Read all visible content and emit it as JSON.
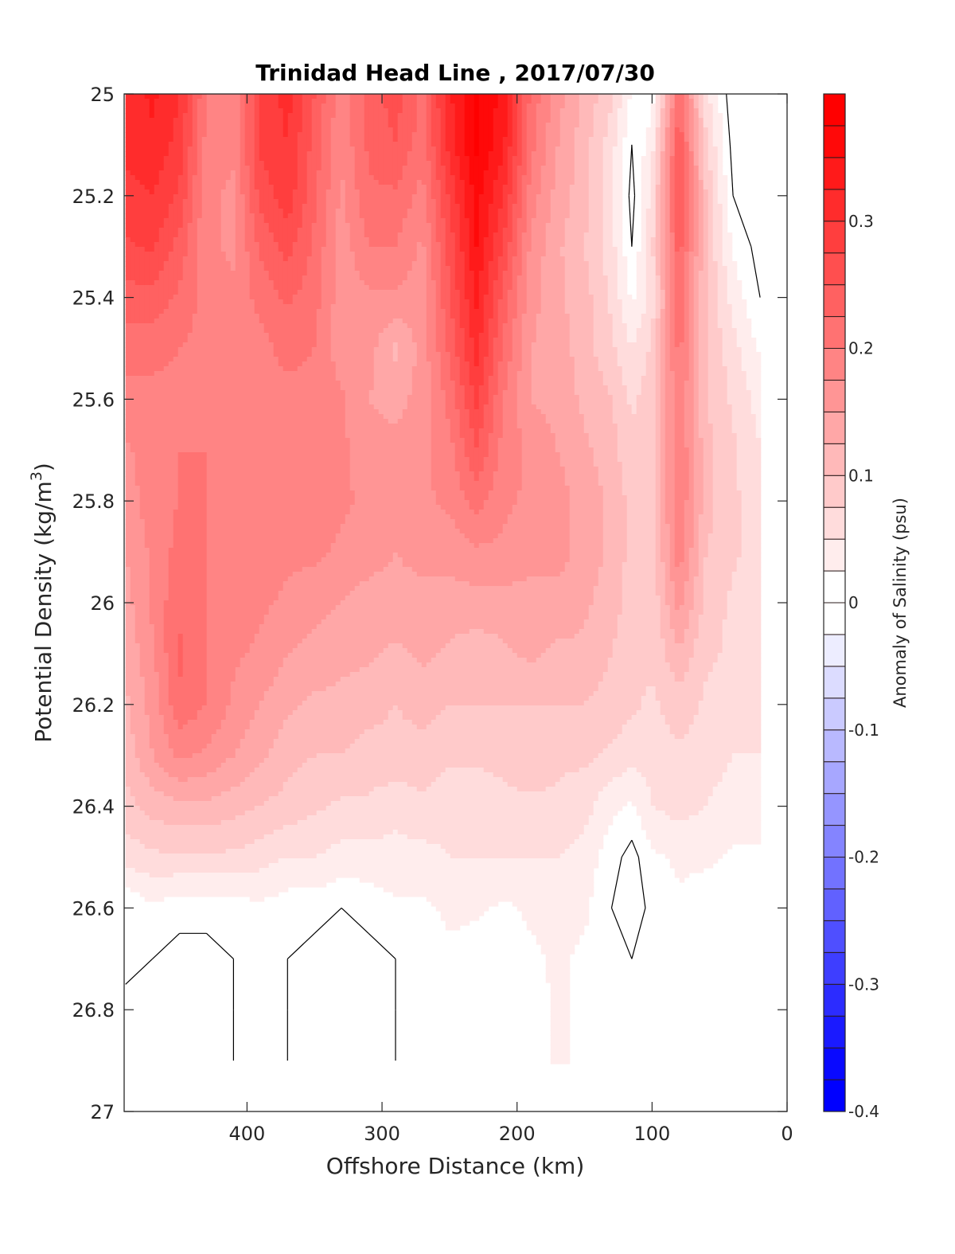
{
  "chart_data": {
    "type": "heatmap",
    "subtype": "filled-contour",
    "title": "Trinidad Head Line , 2017/07/30",
    "xlabel": "Offshore Distance (km)",
    "ylabel": "Potential Density (kg/m",
    "ylabel_sup": "3",
    "ylabel_close": ")",
    "xlim": [
      491,
      0
    ],
    "ylim": [
      25,
      27
    ],
    "y_reversed": true,
    "x_reversed": true,
    "xticks": [
      400,
      300,
      200,
      100,
      0
    ],
    "xtick_labels": [
      "400",
      "300",
      "200",
      "100",
      "0"
    ],
    "yticks": [
      25,
      25.2,
      25.4,
      25.6,
      25.8,
      26,
      26.2,
      26.4,
      26.6,
      26.8,
      27
    ],
    "ytick_labels": [
      "25",
      "25.2",
      "25.4",
      "25.6",
      "25.8",
      "26",
      "26.2",
      "26.4",
      "26.6",
      "26.8",
      "27"
    ],
    "colorbar": {
      "label": "Anomaly of Salinity (psu)",
      "range": [
        -0.4,
        0.4
      ],
      "step": 0.025,
      "ticks": [
        0.3,
        0.2,
        0.1,
        0,
        -0.1,
        -0.2,
        -0.3,
        -0.4
      ],
      "tick_labels": [
        "0.3",
        "0.2",
        "0.1",
        "0",
        "-0.1",
        "-0.2",
        "-0.3",
        "-0.4"
      ],
      "colormap": "blue-white-red",
      "neg_color": "#0000ff",
      "pos_color": "#ff0000",
      "zero_color": "#ffffff"
    },
    "zero_contour": true,
    "x": [
      490,
      470,
      450,
      430,
      410,
      390,
      370,
      350,
      330,
      310,
      290,
      270,
      250,
      230,
      210,
      190,
      170,
      150,
      130,
      115,
      100,
      80,
      60,
      40,
      20
    ],
    "y": [
      25.0,
      25.1,
      25.2,
      25.3,
      25.4,
      25.5,
      25.6,
      25.7,
      25.8,
      25.9,
      26.0,
      26.1,
      26.2,
      26.3,
      26.4,
      26.5,
      26.6,
      26.7,
      26.8,
      26.9
    ],
    "z": [
      [
        0.31,
        0.33,
        0.3,
        0.2,
        0.18,
        0.28,
        0.31,
        0.25,
        0.18,
        0.24,
        0.26,
        0.22,
        0.32,
        0.38,
        0.34,
        0.22,
        0.16,
        0.12,
        0.08,
        0.02,
        0.01,
        0.22,
        0.06,
        -0.02,
        -0.01
      ],
      [
        0.31,
        0.32,
        0.29,
        0.19,
        0.18,
        0.28,
        0.3,
        0.24,
        0.18,
        0.23,
        0.25,
        0.21,
        0.31,
        0.38,
        0.33,
        0.21,
        0.15,
        0.11,
        0.06,
        0.0,
        0.04,
        0.25,
        0.08,
        -0.01,
        -0.01
      ],
      [
        0.29,
        0.3,
        0.27,
        0.18,
        0.17,
        0.26,
        0.29,
        0.23,
        0.17,
        0.22,
        0.22,
        0.19,
        0.28,
        0.36,
        0.3,
        0.19,
        0.14,
        0.11,
        0.06,
        -0.01,
        0.06,
        0.26,
        0.1,
        0.0,
        -0.01
      ],
      [
        0.27,
        0.28,
        0.24,
        0.18,
        0.17,
        0.23,
        0.26,
        0.22,
        0.16,
        0.2,
        0.2,
        0.17,
        0.26,
        0.35,
        0.27,
        0.17,
        0.13,
        0.1,
        0.06,
        0.0,
        0.07,
        0.24,
        0.1,
        0.02,
        -0.01
      ],
      [
        0.24,
        0.24,
        0.22,
        0.19,
        0.18,
        0.21,
        0.23,
        0.21,
        0.16,
        0.17,
        0.17,
        0.16,
        0.25,
        0.33,
        0.24,
        0.16,
        0.13,
        0.11,
        0.07,
        0.02,
        0.06,
        0.22,
        0.1,
        0.04,
        0.0
      ],
      [
        0.21,
        0.21,
        0.2,
        0.19,
        0.18,
        0.19,
        0.21,
        0.2,
        0.16,
        0.16,
        0.12,
        0.16,
        0.23,
        0.31,
        0.22,
        0.15,
        0.14,
        0.11,
        0.08,
        0.05,
        0.08,
        0.21,
        0.1,
        0.06,
        0.02
      ],
      [
        0.19,
        0.19,
        0.19,
        0.19,
        0.19,
        0.19,
        0.19,
        0.19,
        0.18,
        0.15,
        0.14,
        0.16,
        0.21,
        0.28,
        0.2,
        0.15,
        0.14,
        0.12,
        0.1,
        0.07,
        0.09,
        0.2,
        0.1,
        0.07,
        0.04
      ],
      [
        0.17,
        0.19,
        0.2,
        0.2,
        0.19,
        0.19,
        0.19,
        0.19,
        0.18,
        0.16,
        0.16,
        0.17,
        0.19,
        0.25,
        0.19,
        0.17,
        0.15,
        0.13,
        0.11,
        0.08,
        0.09,
        0.2,
        0.11,
        0.08,
        0.05
      ],
      [
        0.16,
        0.19,
        0.2,
        0.2,
        0.19,
        0.19,
        0.19,
        0.19,
        0.18,
        0.17,
        0.16,
        0.17,
        0.18,
        0.21,
        0.18,
        0.17,
        0.16,
        0.14,
        0.12,
        0.09,
        0.09,
        0.2,
        0.11,
        0.08,
        0.06
      ],
      [
        0.15,
        0.18,
        0.21,
        0.2,
        0.19,
        0.19,
        0.18,
        0.18,
        0.17,
        0.16,
        0.15,
        0.16,
        0.16,
        0.17,
        0.17,
        0.16,
        0.16,
        0.14,
        0.12,
        0.09,
        0.09,
        0.19,
        0.1,
        0.08,
        0.06
      ],
      [
        0.14,
        0.18,
        0.22,
        0.2,
        0.19,
        0.18,
        0.17,
        0.16,
        0.15,
        0.14,
        0.14,
        0.14,
        0.14,
        0.14,
        0.14,
        0.14,
        0.14,
        0.13,
        0.11,
        0.09,
        0.08,
        0.16,
        0.09,
        0.07,
        0.06
      ],
      [
        0.13,
        0.17,
        0.23,
        0.2,
        0.18,
        0.17,
        0.15,
        0.14,
        0.13,
        0.13,
        0.12,
        0.13,
        0.12,
        0.11,
        0.12,
        0.13,
        0.12,
        0.12,
        0.1,
        0.08,
        0.08,
        0.12,
        0.08,
        0.07,
        0.06
      ],
      [
        0.12,
        0.16,
        0.22,
        0.2,
        0.17,
        0.15,
        0.13,
        0.12,
        0.12,
        0.11,
        0.1,
        0.11,
        0.1,
        0.1,
        0.1,
        0.1,
        0.1,
        0.1,
        0.09,
        0.08,
        0.07,
        0.09,
        0.07,
        0.06,
        0.05
      ],
      [
        0.11,
        0.15,
        0.18,
        0.17,
        0.15,
        0.13,
        0.11,
        0.1,
        0.1,
        0.09,
        0.09,
        0.09,
        0.08,
        0.08,
        0.08,
        0.09,
        0.08,
        0.08,
        0.07,
        0.06,
        0.06,
        0.07,
        0.06,
        0.05,
        0.05
      ],
      [
        0.09,
        0.11,
        0.12,
        0.12,
        0.11,
        0.1,
        0.09,
        0.08,
        0.07,
        0.07,
        0.06,
        0.07,
        0.06,
        0.06,
        0.07,
        0.07,
        0.07,
        0.06,
        0.03,
        0.02,
        0.05,
        0.06,
        0.05,
        0.04,
        0.04
      ],
      [
        0.06,
        0.07,
        0.07,
        0.07,
        0.07,
        0.06,
        0.05,
        0.05,
        0.04,
        0.04,
        0.04,
        0.04,
        0.05,
        0.05,
        0.05,
        0.05,
        0.05,
        0.04,
        0.01,
        -0.01,
        0.02,
        0.03,
        0.03,
        0.02,
        0.02
      ],
      [
        0.0,
        0.02,
        0.01,
        0.01,
        0.01,
        0.02,
        0.01,
        0.01,
        0.0,
        0.01,
        0.02,
        0.02,
        0.03,
        0.03,
        0.02,
        0.03,
        0.03,
        0.03,
        0.0,
        -0.02,
        0.01,
        0.02,
        0.01,
        0.0,
        0.01
      ],
      [
        0.01,
        0.0,
        -0.01,
        -0.01,
        0.0,
        0.0,
        0.0,
        -0.01,
        -0.01,
        -0.01,
        0.0,
        0.0,
        0.02,
        0.01,
        0.0,
        0.02,
        0.03,
        0.02,
        0.0,
        0.0,
        0.01,
        0.01,
        0.0,
        0.0,
        0.01
      ],
      [
        -0.01,
        -0.01,
        -0.02,
        -0.02,
        0.0,
        0.0,
        0.0,
        -0.01,
        -0.01,
        -0.01,
        0.0,
        0.01,
        0.02,
        0.0,
        0.0,
        0.01,
        0.03,
        0.02,
        0.0,
        0.0,
        0.01,
        0.0,
        0.0,
        0.0,
        0.01
      ],
      [
        -0.01,
        -0.01,
        -0.02,
        -0.02,
        0.0,
        0.0,
        0.0,
        -0.01,
        -0.02,
        -0.01,
        0.0,
        0.01,
        0.0,
        0.0,
        0.0,
        0.01,
        0.03,
        0.02,
        0.0,
        0.0,
        0.0,
        0.0,
        0.0,
        0.0,
        0.0
      ]
    ]
  }
}
